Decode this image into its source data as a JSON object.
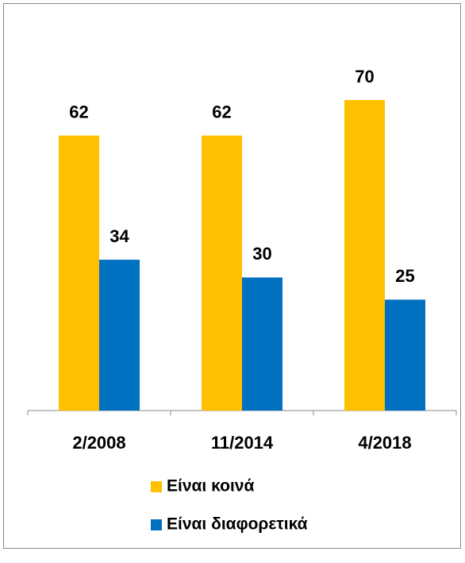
{
  "chart_data": {
    "type": "bar",
    "categories": [
      "2/2008",
      "11/2014",
      "4/2018"
    ],
    "series": [
      {
        "name": "Είναι κοινά",
        "color": "#FFC000",
        "values": [
          62,
          62,
          70
        ]
      },
      {
        "name": "Είναι διαφορετικά",
        "color": "#0070C0",
        "values": [
          34,
          30,
          25
        ]
      }
    ]
  }
}
